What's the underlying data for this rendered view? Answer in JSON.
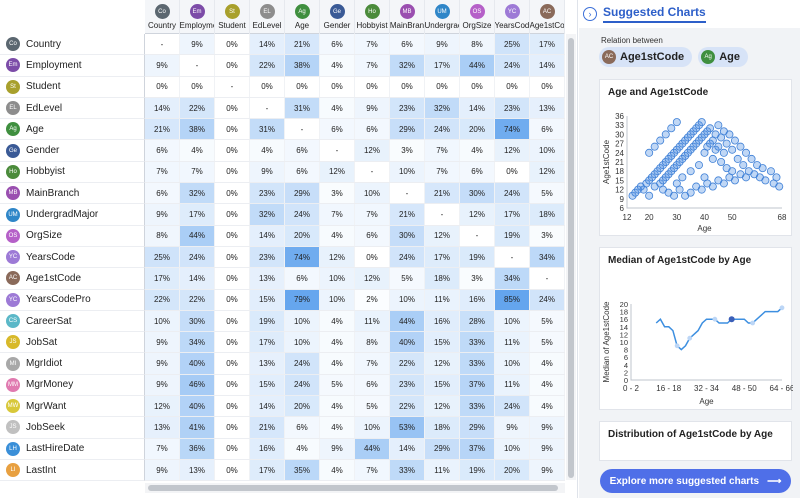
{
  "columns": [
    {
      "abbr": "Co",
      "label": "Country",
      "color": "#5b6770"
    },
    {
      "abbr": "Em",
      "label": "Employme",
      "color": "#7c4ca8"
    },
    {
      "abbr": "St",
      "label": "Student",
      "color": "#a8a02c"
    },
    {
      "abbr": "EL",
      "label": "EdLevel",
      "color": "#8d8d8d"
    },
    {
      "abbr": "Ag",
      "label": "Age",
      "color": "#3f8f3f"
    },
    {
      "abbr": "Ge",
      "label": "Gender",
      "color": "#3a5a96"
    },
    {
      "abbr": "Ho",
      "label": "Hobbyist",
      "color": "#4b8b3b"
    },
    {
      "abbr": "MB",
      "label": "MainBran",
      "color": "#9a4fb0"
    },
    {
      "abbr": "UM",
      "label": "Undergrac",
      "color": "#2f86c8"
    },
    {
      "abbr": "OS",
      "label": "OrgSize",
      "color": "#b560c8"
    },
    {
      "abbr": "YC",
      "label": "YearsCode",
      "color": "#9d7ad6"
    },
    {
      "abbr": "AC",
      "label": "Age1stCo",
      "color": "#8a6a5a"
    }
  ],
  "rows": [
    {
      "abbr": "Co",
      "label": "Country",
      "color": "#5b6770",
      "values": [
        "-",
        "9%",
        "0%",
        "14%",
        "21%",
        "6%",
        "7%",
        "6%",
        "9%",
        "8%",
        "25%",
        "17%"
      ]
    },
    {
      "abbr": "Em",
      "label": "Employment",
      "color": "#7c4ca8",
      "values": [
        "9%",
        "-",
        "0%",
        "22%",
        "38%",
        "4%",
        "7%",
        "32%",
        "17%",
        "44%",
        "24%",
        "14%"
      ]
    },
    {
      "abbr": "St",
      "label": "Student",
      "color": "#a8a02c",
      "values": [
        "0%",
        "0%",
        "-",
        "0%",
        "0%",
        "0%",
        "0%",
        "0%",
        "0%",
        "0%",
        "0%",
        "0%"
      ]
    },
    {
      "abbr": "EL",
      "label": "EdLevel",
      "color": "#8d8d8d",
      "values": [
        "14%",
        "22%",
        "0%",
        "-",
        "31%",
        "4%",
        "9%",
        "23%",
        "32%",
        "14%",
        "23%",
        "13%"
      ]
    },
    {
      "abbr": "Ag",
      "label": "Age",
      "color": "#3f8f3f",
      "values": [
        "21%",
        "38%",
        "0%",
        "31%",
        "-",
        "6%",
        "6%",
        "29%",
        "24%",
        "20%",
        "74%",
        "6%"
      ]
    },
    {
      "abbr": "Ge",
      "label": "Gender",
      "color": "#3a5a96",
      "values": [
        "6%",
        "4%",
        "0%",
        "4%",
        "6%",
        "-",
        "12%",
        "3%",
        "7%",
        "4%",
        "12%",
        "10%"
      ]
    },
    {
      "abbr": "Ho",
      "label": "Hobbyist",
      "color": "#4b8b3b",
      "values": [
        "7%",
        "7%",
        "0%",
        "9%",
        "6%",
        "12%",
        "-",
        "10%",
        "7%",
        "6%",
        "0%",
        "12%"
      ]
    },
    {
      "abbr": "MB",
      "label": "MainBranch",
      "color": "#9a4fb0",
      "values": [
        "6%",
        "32%",
        "0%",
        "23%",
        "29%",
        "3%",
        "10%",
        "-",
        "21%",
        "30%",
        "24%",
        "5%"
      ]
    },
    {
      "abbr": "UM",
      "label": "UndergradMajor",
      "color": "#2f86c8",
      "values": [
        "9%",
        "17%",
        "0%",
        "32%",
        "24%",
        "7%",
        "7%",
        "21%",
        "-",
        "12%",
        "17%",
        "18%"
      ]
    },
    {
      "abbr": "OS",
      "label": "OrgSize",
      "color": "#b560c8",
      "values": [
        "8%",
        "44%",
        "0%",
        "14%",
        "20%",
        "4%",
        "6%",
        "30%",
        "12%",
        "-",
        "19%",
        "3%"
      ]
    },
    {
      "abbr": "YC",
      "label": "YearsCode",
      "color": "#9d7ad6",
      "values": [
        "25%",
        "24%",
        "0%",
        "23%",
        "74%",
        "12%",
        "0%",
        "24%",
        "17%",
        "19%",
        "-",
        "34%"
      ]
    },
    {
      "abbr": "AC",
      "label": "Age1stCode",
      "color": "#8a6a5a",
      "values": [
        "17%",
        "14%",
        "0%",
        "13%",
        "6%",
        "10%",
        "12%",
        "5%",
        "18%",
        "3%",
        "34%",
        "-"
      ]
    },
    {
      "abbr": "YC",
      "label": "YearsCodePro",
      "color": "#9d7ad6",
      "values": [
        "22%",
        "22%",
        "0%",
        "15%",
        "79%",
        "10%",
        "2%",
        "10%",
        "11%",
        "16%",
        "85%",
        "24%"
      ]
    },
    {
      "abbr": "CS",
      "label": "CareerSat",
      "color": "#5bb8c8",
      "values": [
        "10%",
        "30%",
        "0%",
        "19%",
        "10%",
        "4%",
        "11%",
        "44%",
        "16%",
        "28%",
        "10%",
        "5%"
      ]
    },
    {
      "abbr": "JS",
      "label": "JobSat",
      "color": "#d8b92a",
      "values": [
        "9%",
        "34%",
        "0%",
        "17%",
        "10%",
        "4%",
        "8%",
        "40%",
        "15%",
        "33%",
        "11%",
        "5%"
      ]
    },
    {
      "abbr": "MI",
      "label": "MgrIdiot",
      "color": "#a8a8a8",
      "values": [
        "9%",
        "40%",
        "0%",
        "13%",
        "24%",
        "4%",
        "7%",
        "22%",
        "12%",
        "33%",
        "10%",
        "4%"
      ]
    },
    {
      "abbr": "MM",
      "label": "MgrMoney",
      "color": "#e07ab0",
      "values": [
        "9%",
        "46%",
        "0%",
        "15%",
        "24%",
        "5%",
        "6%",
        "23%",
        "15%",
        "37%",
        "11%",
        "4%"
      ]
    },
    {
      "abbr": "MW",
      "label": "MgrWant",
      "color": "#d8c83a",
      "values": [
        "12%",
        "40%",
        "0%",
        "14%",
        "20%",
        "4%",
        "5%",
        "22%",
        "12%",
        "33%",
        "24%",
        "4%"
      ]
    },
    {
      "abbr": "JS",
      "label": "JobSeek",
      "color": "#c0c0c0",
      "values": [
        "13%",
        "41%",
        "0%",
        "21%",
        "6%",
        "4%",
        "10%",
        "53%",
        "18%",
        "29%",
        "9%",
        "9%"
      ]
    },
    {
      "abbr": "LH",
      "label": "LastHireDate",
      "color": "#3a8fd8",
      "values": [
        "7%",
        "36%",
        "0%",
        "16%",
        "4%",
        "9%",
        "44%",
        "14%",
        "29%",
        "37%",
        "10%",
        "9%"
      ]
    },
    {
      "abbr": "LI",
      "label": "LastInt",
      "color": "#e8a040",
      "values": [
        "9%",
        "13%",
        "0%",
        "17%",
        "35%",
        "4%",
        "7%",
        "33%",
        "11%",
        "19%",
        "20%",
        "9%"
      ]
    }
  ],
  "panel": {
    "title": "Suggested Charts",
    "collapse_icon": "chevron-right-icon",
    "relation_label": "Relation between",
    "chips": [
      {
        "abbr": "AC",
        "label": "Age1stCode",
        "color": "#8a6a5a"
      },
      {
        "abbr": "Ag",
        "label": "Age",
        "color": "#3f8f3f"
      }
    ],
    "explore_label": "Explore more suggested charts",
    "explore_icon": "arrow-right-icon"
  },
  "charts": {
    "scatter": {
      "title": "Age and Age1stCode",
      "xlabel": "Age",
      "ylabel": "Age1stCode",
      "x_ticks": [
        "12",
        "20",
        "30",
        "40",
        "50",
        "68"
      ],
      "y_ticks": [
        "36",
        "33",
        "30",
        "27",
        "24",
        "21",
        "18",
        "15",
        "12",
        "9",
        "6"
      ]
    },
    "median": {
      "title": "Median of Age1stCode by Age",
      "xlabel": "Age",
      "ylabel": "Median of Age1stCode",
      "x_ticks": [
        "0 - 2",
        "16 - 18",
        "32 - 34",
        "48 - 50",
        "64 - 66"
      ],
      "y_ticks": [
        "20",
        "18",
        "16",
        "14",
        "12",
        "10",
        "8",
        "6",
        "4",
        "2",
        "0"
      ]
    },
    "distribution": {
      "title": "Distribution of Age1stCode by Age"
    }
  },
  "chart_data": [
    {
      "type": "scatter",
      "title": "Age and Age1stCode",
      "xlabel": "Age",
      "ylabel": "Age1stCode",
      "xlim": [
        12,
        68
      ],
      "ylim": [
        6,
        36
      ],
      "x_ticks": [
        12,
        20,
        30,
        40,
        50,
        68
      ],
      "y_ticks": [
        6,
        9,
        12,
        15,
        18,
        21,
        24,
        27,
        30,
        33,
        36
      ],
      "points": [
        [
          14,
          10
        ],
        [
          15,
          11
        ],
        [
          16,
          12
        ],
        [
          17,
          13
        ],
        [
          18,
          12
        ],
        [
          19,
          14
        ],
        [
          20,
          15
        ],
        [
          20,
          10
        ],
        [
          21,
          16
        ],
        [
          22,
          17
        ],
        [
          22,
          13
        ],
        [
          23,
          18
        ],
        [
          24,
          19
        ],
        [
          24,
          14
        ],
        [
          25,
          20
        ],
        [
          25,
          15
        ],
        [
          26,
          21
        ],
        [
          26,
          16
        ],
        [
          27,
          22
        ],
        [
          27,
          17
        ],
        [
          28,
          23
        ],
        [
          28,
          18
        ],
        [
          29,
          24
        ],
        [
          29,
          19
        ],
        [
          30,
          25
        ],
        [
          30,
          20
        ],
        [
          30,
          14
        ],
        [
          31,
          26
        ],
        [
          31,
          21
        ],
        [
          32,
          27
        ],
        [
          32,
          22
        ],
        [
          32,
          16
        ],
        [
          33,
          28
        ],
        [
          33,
          23
        ],
        [
          34,
          29
        ],
        [
          34,
          24
        ],
        [
          35,
          30
        ],
        [
          35,
          25
        ],
        [
          35,
          18
        ],
        [
          36,
          31
        ],
        [
          36,
          26
        ],
        [
          37,
          32
        ],
        [
          37,
          27
        ],
        [
          38,
          33
        ],
        [
          38,
          28
        ],
        [
          38,
          20
        ],
        [
          39,
          34
        ],
        [
          39,
          29
        ],
        [
          40,
          30
        ],
        [
          40,
          24
        ],
        [
          40,
          16
        ],
        [
          41,
          31
        ],
        [
          41,
          26
        ],
        [
          42,
          32
        ],
        [
          42,
          27
        ],
        [
          43,
          28
        ],
        [
          43,
          22
        ],
        [
          44,
          30
        ],
        [
          44,
          25
        ],
        [
          45,
          33
        ],
        [
          45,
          26
        ],
        [
          46,
          29
        ],
        [
          46,
          21
        ],
        [
          47,
          31
        ],
        [
          47,
          24
        ],
        [
          48,
          27
        ],
        [
          48,
          19
        ],
        [
          49,
          30
        ],
        [
          50,
          25
        ],
        [
          50,
          18
        ],
        [
          51,
          28
        ],
        [
          52,
          22
        ],
        [
          53,
          26
        ],
        [
          54,
          20
        ],
        [
          55,
          24
        ],
        [
          56,
          18
        ],
        [
          57,
          22
        ],
        [
          58,
          17
        ],
        [
          59,
          20
        ],
        [
          60,
          16
        ],
        [
          61,
          19
        ],
        [
          62,
          15
        ],
        [
          64,
          18
        ],
        [
          65,
          14
        ],
        [
          66,
          16
        ],
        [
          67,
          13
        ],
        [
          20,
          24
        ],
        [
          22,
          26
        ],
        [
          24,
          28
        ],
        [
          26,
          30
        ],
        [
          28,
          32
        ],
        [
          30,
          34
        ],
        [
          25,
          12
        ],
        [
          27,
          11
        ],
        [
          29,
          10
        ],
        [
          31,
          12
        ],
        [
          33,
          10
        ],
        [
          35,
          11
        ],
        [
          37,
          13
        ],
        [
          39,
          12
        ],
        [
          41,
          14
        ],
        [
          43,
          13
        ],
        [
          45,
          15
        ],
        [
          47,
          14
        ],
        [
          49,
          16
        ],
        [
          51,
          15
        ],
        [
          53,
          17
        ],
        [
          55,
          16
        ]
      ]
    },
    {
      "type": "line",
      "title": "Median of Age1stCode by Age",
      "xlabel": "Age",
      "ylabel": "Median of Age1stCode",
      "ylim": [
        0,
        20
      ],
      "categories": [
        "0 - 2",
        "16 - 18",
        "32 - 34",
        "48 - 50",
        "64 - 66"
      ],
      "x": [
        6,
        7,
        8,
        9,
        10,
        11,
        12,
        13,
        14,
        15,
        16,
        17,
        18,
        19,
        20,
        21,
        22,
        23,
        24,
        25,
        26,
        27,
        28,
        29,
        30,
        31,
        32,
        33,
        34,
        35,
        36
      ],
      "values": [
        15,
        16,
        14,
        14,
        13,
        9,
        8,
        9,
        11,
        12,
        13,
        15,
        16,
        16,
        16,
        15,
        15,
        15,
        16,
        16,
        16,
        16,
        15,
        15,
        16,
        17,
        18,
        18,
        18,
        18,
        19
      ]
    }
  ]
}
